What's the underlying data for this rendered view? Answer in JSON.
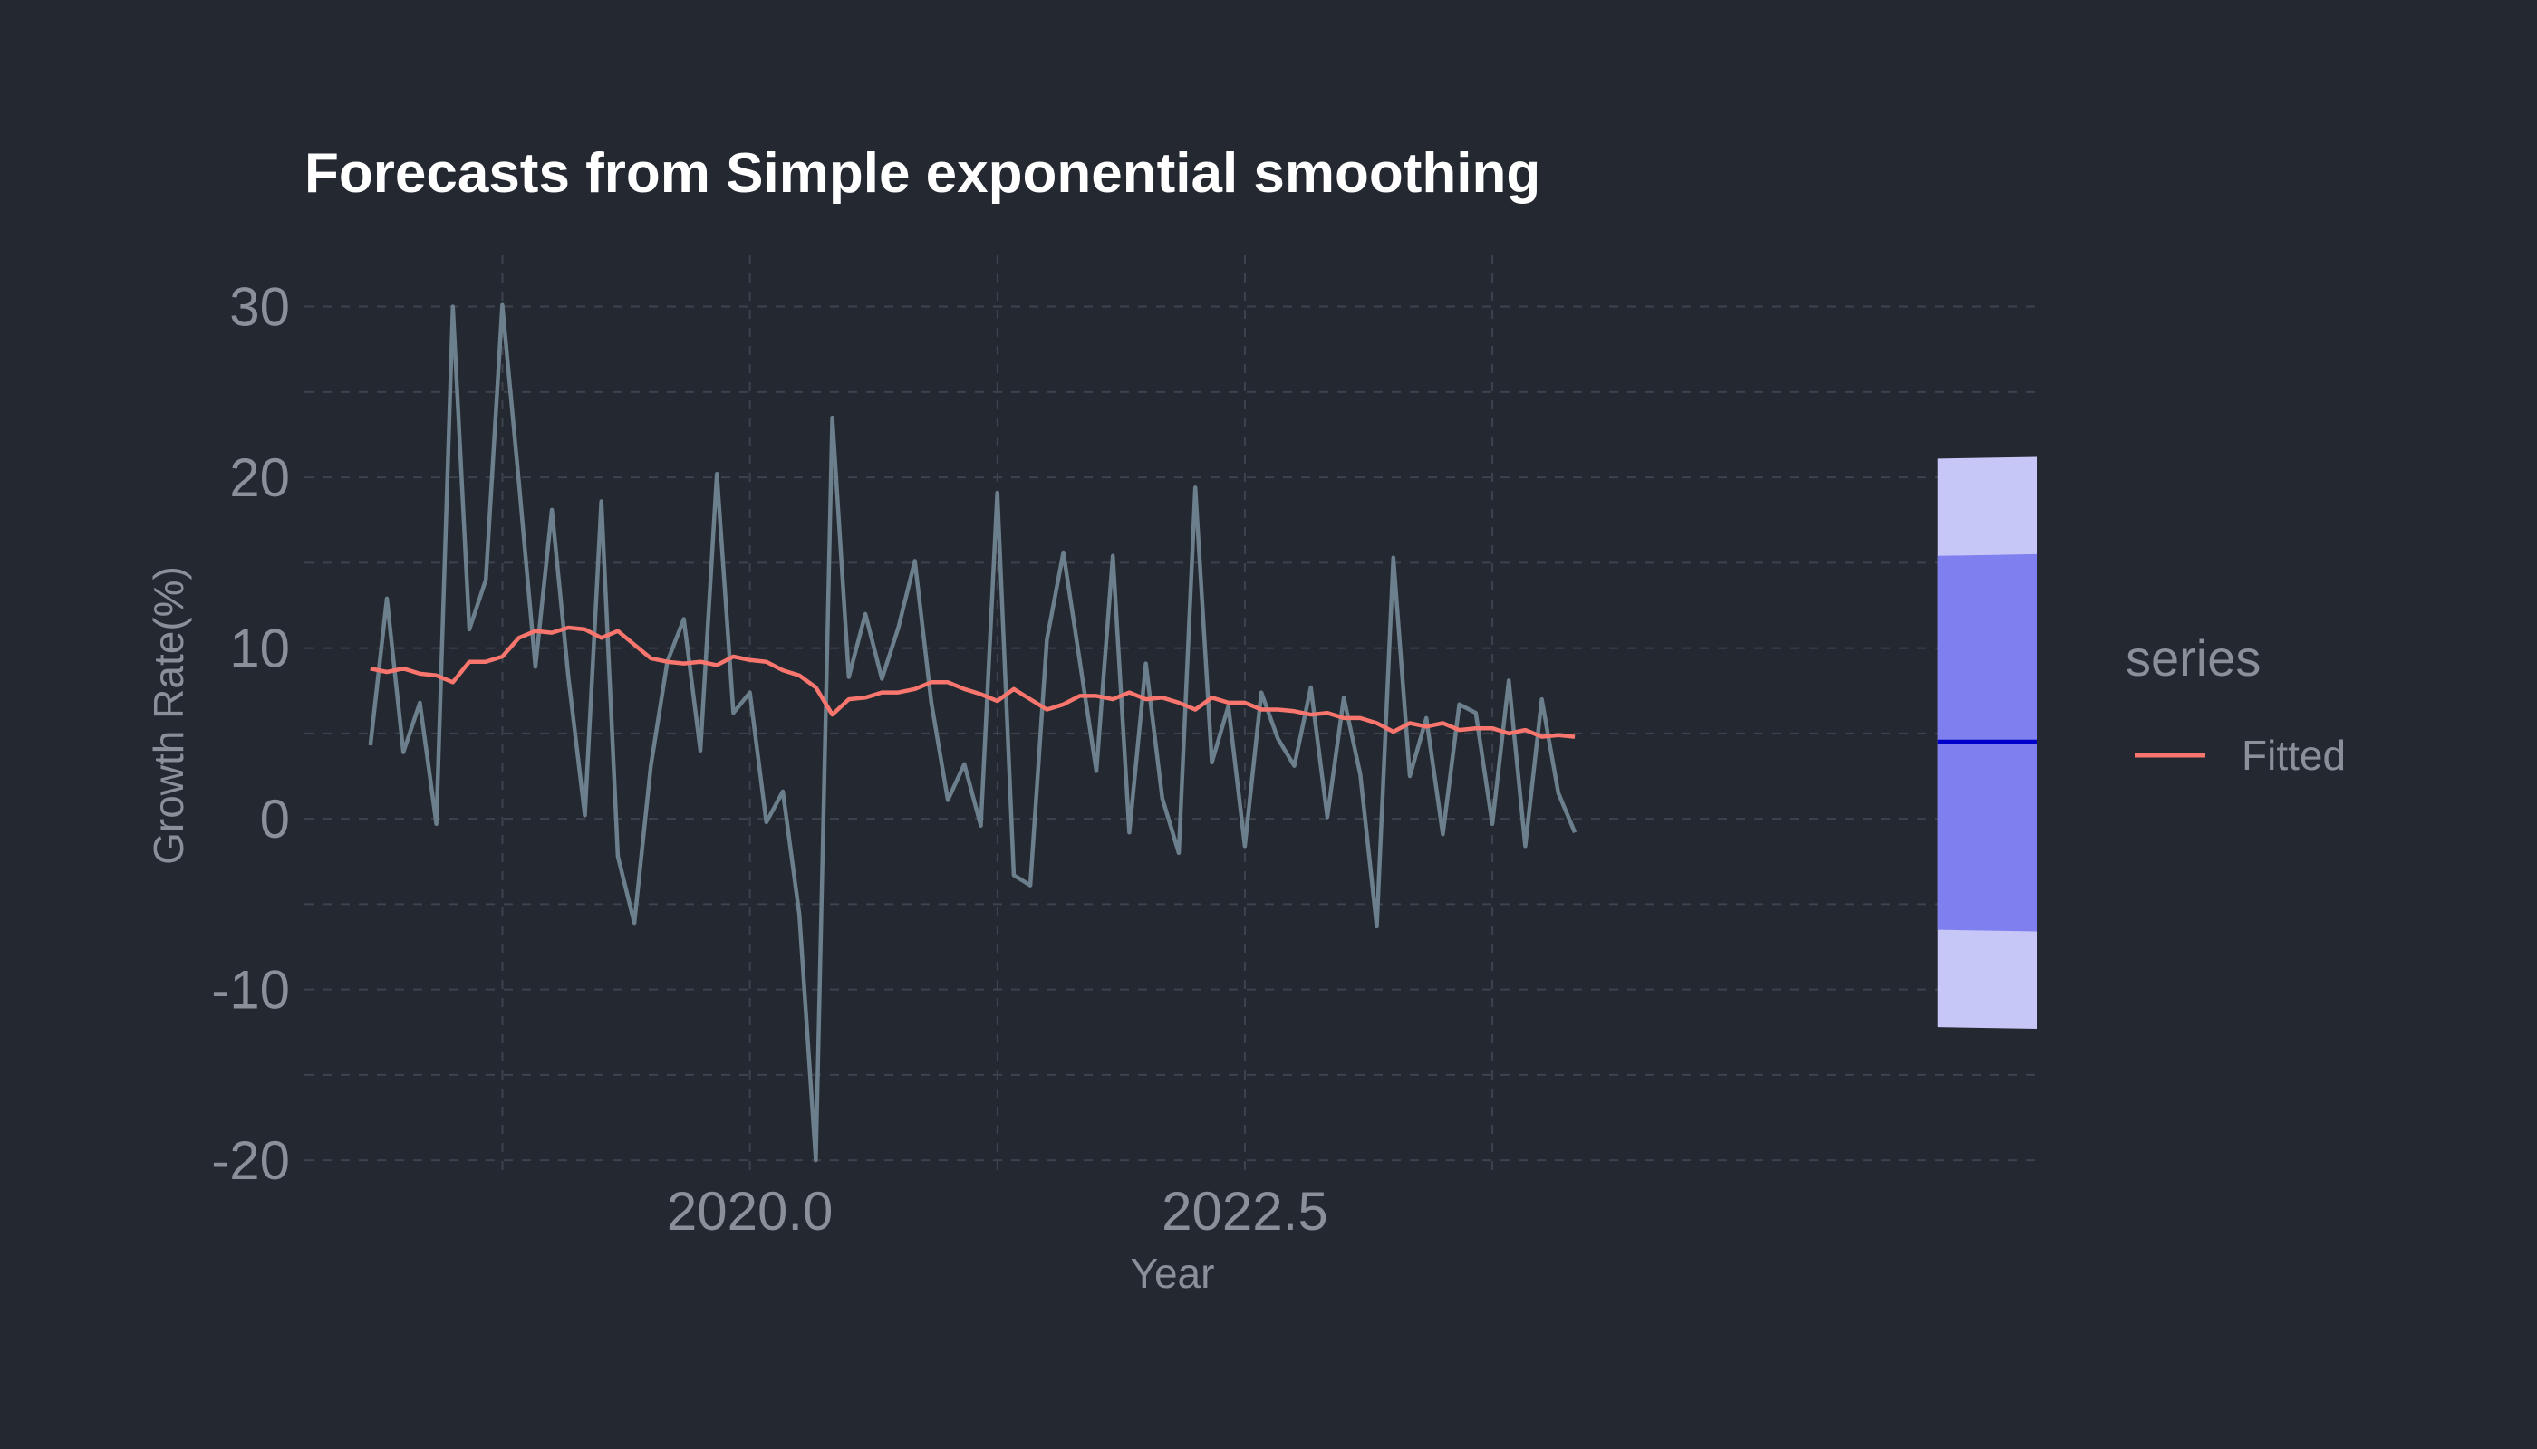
{
  "chart_data": {
    "type": "line",
    "title": "Forecasts from Simple exponential smoothing",
    "xlabel": "Year",
    "ylabel": "Growth Rate(%)",
    "xlim": [
      2017.75,
      2026.5
    ],
    "ylim": [
      -21,
      33
    ],
    "x_major_ticks": [
      2020.0,
      2022.5
    ],
    "x_major_tick_labels": [
      "2020.0",
      "2022.5"
    ],
    "x_minor_grid": [
      2018.75,
      2021.25,
      2023.75
    ],
    "y_ticks": [
      -20,
      -10,
      0,
      10,
      20,
      30
    ],
    "y_tick_labels": [
      "-20",
      "-10",
      "0",
      "10",
      "20",
      "30"
    ],
    "grid": true,
    "legend": {
      "title": "series",
      "placement": "right",
      "entries": [
        {
          "label": "Fitted",
          "color": "#f8766d"
        }
      ]
    },
    "colors": {
      "actual": "#6c7f8c",
      "fitted": "#f8766d",
      "point_forecast": "#0000cc",
      "pi80": "#7f7fef",
      "pi95": "#c6c6f7"
    },
    "start_year": 2018.083,
    "step": 0.0833333,
    "actual": [
      4.3,
      12.9,
      3.9,
      6.8,
      -0.3,
      30.0,
      11.1,
      14.0,
      30.1,
      19.7,
      8.9,
      18.1,
      8.3,
      0.2,
      18.6,
      -2.2,
      -6.1,
      3.1,
      9.2,
      11.7,
      4.0,
      20.2,
      6.2,
      7.4,
      -0.2,
      1.6,
      -5.6,
      -20.0,
      23.5,
      8.3,
      12.0,
      8.2,
      11.2,
      15.1,
      6.8,
      1.1,
      3.2,
      -0.4,
      19.1,
      -3.3,
      -3.9,
      10.5,
      15.6,
      9.2,
      2.8,
      15.4,
      -0.8,
      9.1,
      1.2,
      -2.0,
      19.4,
      3.3,
      6.6,
      -1.6,
      7.4,
      4.7,
      3.1,
      7.7,
      0.1,
      7.1,
      2.6,
      -6.3,
      15.3,
      2.5,
      5.9,
      -0.9,
      6.7,
      6.2,
      -0.3,
      8.1,
      -1.6,
      7.0,
      1.5,
      -0.8
    ],
    "fitted": [
      8.8,
      8.6,
      8.8,
      8.5,
      8.4,
      8.0,
      9.2,
      9.2,
      9.5,
      10.6,
      11.0,
      10.9,
      11.2,
      11.1,
      10.6,
      11.0,
      10.2,
      9.4,
      9.2,
      9.1,
      9.2,
      9.0,
      9.5,
      9.3,
      9.2,
      8.7,
      8.4,
      7.7,
      6.1,
      7.0,
      7.1,
      7.4,
      7.4,
      7.6,
      8.0,
      8.0,
      7.6,
      7.3,
      6.9,
      7.6,
      7.0,
      6.4,
      6.7,
      7.2,
      7.2,
      7.0,
      7.4,
      7.0,
      7.1,
      6.8,
      6.4,
      7.1,
      6.8,
      6.8,
      6.4,
      6.4,
      6.3,
      6.1,
      6.2,
      5.9,
      5.9,
      5.6,
      5.1,
      5.6,
      5.4,
      5.6,
      5.2,
      5.3,
      5.3,
      5.0,
      5.2,
      4.8,
      4.9,
      4.8
    ],
    "forecast": {
      "x": [
        2026.0,
        2026.5
      ],
      "mean": 4.5,
      "lo80": [
        -6.5,
        -6.6
      ],
      "hi80": [
        15.4,
        15.5
      ],
      "lo95": [
        -12.2,
        -12.3
      ],
      "hi95": [
        21.1,
        21.2
      ]
    }
  }
}
